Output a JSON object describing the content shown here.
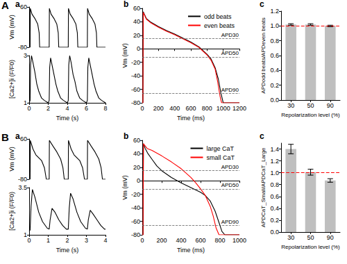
{
  "panel_labels": [
    "A",
    "B"
  ],
  "chart_data": [
    {
      "type": "line",
      "title": "a",
      "ylabel": "Vm (mV)",
      "tick_labels": "y",
      "xlim": [
        0,
        8
      ],
      "ylim": [
        -80,
        60
      ],
      "yticks": [
        -80,
        60
      ],
      "color": "#000000",
      "line_style": "solid",
      "x": [
        0,
        0.1,
        0.12,
        0.3,
        0.6,
        0.9,
        1.05,
        1.1,
        2.1,
        2.12,
        2.3,
        2.6,
        2.9,
        3.05,
        3.1,
        4.1,
        4.12,
        4.3,
        4.6,
        4.9,
        5.05,
        5.1,
        6.1,
        6.12,
        6.3,
        6.6,
        6.9,
        7.05,
        7.1,
        8
      ],
      "values": [
        -80,
        -80,
        55,
        35,
        20,
        0,
        -30,
        -80,
        -80,
        55,
        35,
        20,
        0,
        -30,
        -80,
        -80,
        55,
        35,
        20,
        0,
        -30,
        -80,
        -80,
        55,
        35,
        20,
        0,
        -30,
        -80,
        -80
      ]
    },
    {
      "type": "line",
      "xlabel": "Time (s)",
      "ylabel": "[Ca2+]i (F/F0)",
      "xlim": [
        0,
        8
      ],
      "xticks": [
        0,
        2,
        4,
        6,
        8
      ],
      "ylim": [
        1,
        3
      ],
      "yticks": [
        1,
        3
      ],
      "color": "#000000",
      "line_style": "solid",
      "x": [
        0,
        0.1,
        0.15,
        0.25,
        0.4,
        0.6,
        0.8,
        1.0,
        1.3,
        1.6,
        2.0,
        2.1,
        2.15,
        2.25,
        2.4,
        2.6,
        2.8,
        3.0,
        3.3,
        3.6,
        4.0,
        4.1,
        4.15,
        4.25,
        4.4,
        4.6,
        4.8,
        5.0,
        5.3,
        5.6,
        6.0,
        6.1,
        6.15,
        6.25,
        6.4,
        6.6,
        6.8,
        7.0,
        7.3,
        7.6,
        8.0
      ],
      "values": [
        1.0,
        1.1,
        2.6,
        3.0,
        2.7,
        2.3,
        1.8,
        1.5,
        1.2,
        1.1,
        1.0,
        1.1,
        2.5,
        2.9,
        2.6,
        2.2,
        1.8,
        1.5,
        1.2,
        1.1,
        1.0,
        1.1,
        2.6,
        3.0,
        2.7,
        2.2,
        1.9,
        1.5,
        1.2,
        1.1,
        1.0,
        1.1,
        2.5,
        2.9,
        2.6,
        2.2,
        1.8,
        1.5,
        1.2,
        1.1,
        1.0
      ]
    },
    {
      "type": "line",
      "title": "b",
      "xlabel": "Time (ms)",
      "ylabel": "Vm (mV)",
      "legend": "upper right",
      "xlim": [
        0,
        1200
      ],
      "xticks": [
        0,
        200,
        400,
        600,
        800,
        1000,
        1200
      ],
      "ylim": [
        -80,
        60
      ],
      "yticks": [
        -80,
        -60,
        -40,
        -20,
        0,
        20,
        40,
        60
      ],
      "annotations": [
        {
          "text": "APD30",
          "y": 15
        },
        {
          "text": "APD50",
          "y": -12
        },
        {
          "text": "APD90",
          "y": -66
        }
      ],
      "series": [
        {
          "name": "odd beats",
          "color": "#000000",
          "line_style": "solid",
          "x": [
            0,
            8,
            12,
            50,
            100,
            200,
            300,
            400,
            500,
            600,
            700,
            800,
            850,
            900,
            940,
            970,
            1000,
            1100,
            1200
          ],
          "values": [
            -80,
            -80,
            55,
            45,
            40,
            33,
            27,
            22,
            16,
            10,
            3,
            -8,
            -15,
            -28,
            -45,
            -65,
            -80,
            -80,
            -80
          ]
        },
        {
          "name": "even beats",
          "color": "#ff0000",
          "line_style": "solid",
          "x": [
            0,
            8,
            12,
            50,
            100,
            200,
            300,
            400,
            500,
            600,
            700,
            800,
            850,
            900,
            930,
            960,
            980,
            1100,
            1200
          ],
          "values": [
            -80,
            -80,
            54,
            44,
            39,
            32,
            26,
            21,
            15,
            9,
            2,
            -9,
            -17,
            -30,
            -48,
            -70,
            -80,
            -80,
            -80
          ]
        }
      ]
    },
    {
      "type": "bar",
      "title": "c",
      "xlabel": "Repolarization level (%)",
      "ylabel": "APDodd beats/APDeven beats",
      "categories": [
        "30",
        "50",
        "90"
      ],
      "values": [
        1.02,
        1.02,
        1.0
      ],
      "errors": [
        0.01,
        0.01,
        0.01
      ],
      "color": "#bfbfbf",
      "ylim": [
        0,
        1.2
      ],
      "yticks": [
        {
          "value": 0,
          "label": "0.0"
        },
        0.2,
        0.4,
        0.6,
        0.8,
        {
          "value": 1,
          "label": "1.0"
        },
        1.2
      ],
      "reference_line": {
        "value": 1,
        "color": "#ff0000",
        "line_style": "dashed"
      }
    },
    {
      "type": "line",
      "title": "a",
      "ylabel": "Vm (mV)",
      "tick_labels": "y",
      "xlim": [
        0,
        4
      ],
      "ylim": [
        -80,
        60
      ],
      "yticks": [
        -80,
        60
      ],
      "color": "#000000",
      "line_style": "solid",
      "x": [
        0,
        0.05,
        0.06,
        0.2,
        0.35,
        0.65,
        0.8,
        0.9,
        1.05,
        1.06,
        1.25,
        1.45,
        1.65,
        1.77,
        1.84,
        2.05,
        2.06,
        2.2,
        2.35,
        2.65,
        2.8,
        2.9,
        3.05,
        3.06,
        3.25,
        3.45,
        3.65,
        3.77,
        3.84,
        4
      ],
      "values": [
        -80,
        -80,
        55,
        25,
        5,
        -15,
        -40,
        -80,
        -80,
        55,
        35,
        15,
        -10,
        -40,
        -80,
        -80,
        55,
        25,
        5,
        -15,
        -40,
        -80,
        -80,
        55,
        35,
        15,
        -10,
        -40,
        -80,
        -80
      ]
    },
    {
      "type": "line",
      "xlabel": "Time (s)",
      "ylabel": "[Ca2+]i (F/F0)",
      "xlim": [
        0,
        4
      ],
      "xticks": [
        0,
        1,
        2,
        3,
        4
      ],
      "ylim": [
        1,
        3.5
      ],
      "yticks": [
        1,
        3.5
      ],
      "color": "#000000",
      "line_style": "solid",
      "x": [
        0,
        0.05,
        0.1,
        0.17,
        0.3,
        0.5,
        0.7,
        0.95,
        1.05,
        1.1,
        1.2,
        1.35,
        1.55,
        1.75,
        1.95,
        2.05,
        2.1,
        2.17,
        2.3,
        2.5,
        2.7,
        2.95,
        3.05,
        3.1,
        3.2,
        3.35,
        3.55,
        3.75,
        3.95,
        4
      ],
      "values": [
        1.2,
        1.25,
        2.5,
        3.4,
        3.0,
        2.2,
        1.7,
        1.35,
        1.3,
        1.8,
        2.4,
        2.2,
        1.8,
        1.5,
        1.3,
        1.3,
        2.4,
        3.2,
        2.9,
        2.2,
        1.7,
        1.35,
        1.3,
        1.8,
        2.3,
        2.1,
        1.8,
        1.5,
        1.3,
        1.3
      ]
    },
    {
      "type": "line",
      "title": "b",
      "xlabel": "Time (ms)",
      "ylabel": "Vm (mV)",
      "legend": "upper right",
      "xlim": [
        0,
        1000
      ],
      "xticks": [
        0,
        200,
        400,
        600,
        800,
        1000
      ],
      "ylim": [
        -80,
        60
      ],
      "yticks": [
        -80,
        -60,
        -40,
        -20,
        0,
        20,
        40,
        60
      ],
      "annotations": [
        {
          "text": "APD30",
          "y": 15
        },
        {
          "text": "APD50",
          "y": -12
        },
        {
          "text": "APD90",
          "y": -66
        }
      ],
      "series": [
        {
          "name": "large CaT",
          "color": "#000000",
          "line_style": "solid",
          "x": [
            0,
            8,
            12,
            30,
            60,
            100,
            150,
            200,
            300,
            400,
            500,
            600,
            650,
            700,
            750,
            790,
            820,
            850,
            1000
          ],
          "values": [
            -80,
            -80,
            55,
            48,
            40,
            32,
            22,
            15,
            5,
            -3,
            -10,
            -17,
            -22,
            -30,
            -45,
            -62,
            -75,
            -80,
            -80
          ]
        },
        {
          "name": "small CaT",
          "color": "#ff0000",
          "line_style": "solid",
          "x": [
            0,
            8,
            12,
            50,
            100,
            200,
            300,
            400,
            500,
            550,
            600,
            650,
            700,
            730,
            760,
            790,
            1000
          ],
          "values": [
            -80,
            -80,
            55,
            48,
            45,
            37,
            28,
            18,
            5,
            -3,
            -12,
            -22,
            -38,
            -52,
            -70,
            -80,
            -80
          ]
        }
      ]
    },
    {
      "type": "bar",
      "title": "c",
      "xlabel": "Repolarization level (%)",
      "ylabel": "APDCaT_Small/APDCaT_Large",
      "categories": [
        "30",
        "50",
        "90"
      ],
      "values": [
        1.4,
        1.01,
        0.87
      ],
      "errors": [
        0.08,
        0.05,
        0.03
      ],
      "color": "#bfbfbf",
      "ylim": [
        0,
        1.5
      ],
      "yticks": [
        {
          "value": 0,
          "label": "0.0"
        },
        0.2,
        0.4,
        0.6,
        0.8,
        {
          "value": 1,
          "label": "1.0"
        },
        1.2,
        1.4
      ],
      "reference_line": {
        "value": 1,
        "color": "#ff0000",
        "line_style": "dashed"
      }
    }
  ]
}
